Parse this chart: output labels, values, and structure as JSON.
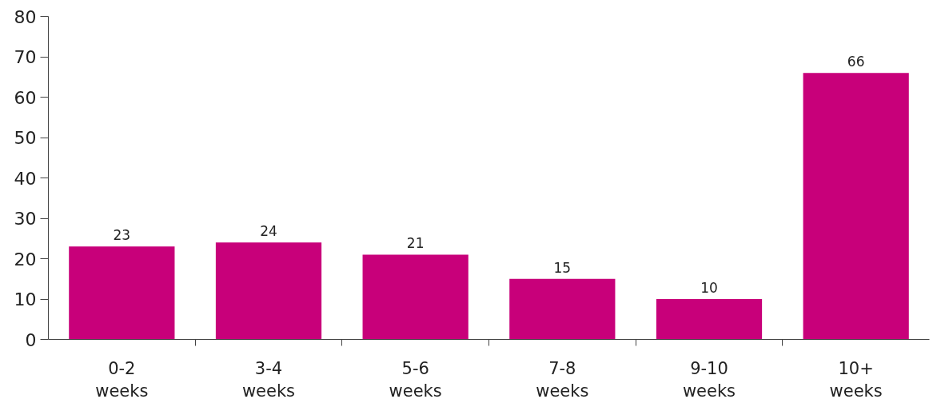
{
  "chart_data": {
    "type": "bar",
    "categories": [
      "0-2\nweeks",
      "3-4\nweeks",
      "5-6\nweeks",
      "7-8\nweeks",
      "9-10\nweeks",
      "10+\nweeks"
    ],
    "values": [
      23,
      24,
      21,
      15,
      10,
      66
    ],
    "color": "#c8007a",
    "ylim": [
      0,
      80
    ],
    "yticks": [
      0,
      10,
      20,
      30,
      40,
      50,
      60,
      70,
      80
    ],
    "data_labels": true
  }
}
